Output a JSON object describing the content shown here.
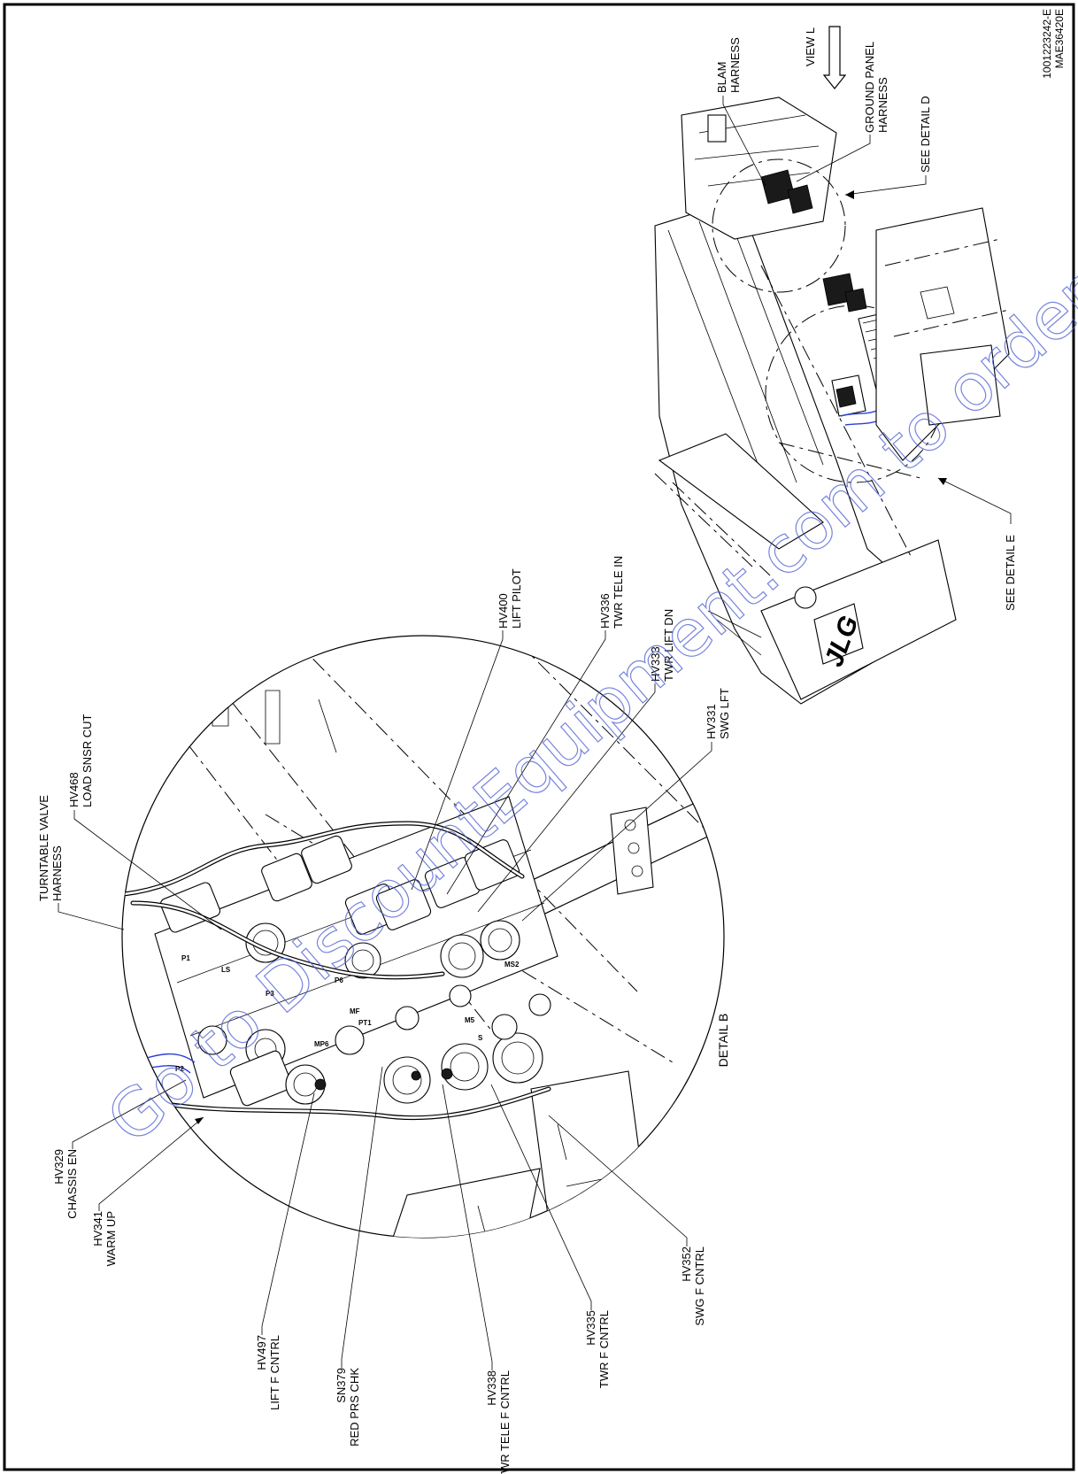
{
  "detail_b_title": "DETAIL B",
  "drawing_numbers": [
    "1001223242-E",
    "MAE36420E"
  ],
  "callouts": [
    {
      "id": "turntable-valve-harness",
      "lines": [
        "TURNTABLE VALVE",
        "HARNESS"
      ]
    },
    {
      "id": "hv468",
      "lines": [
        "HV468",
        "LOAD SNSR CUT"
      ]
    },
    {
      "id": "hv400",
      "lines": [
        "HV400",
        "LIFT PILOT"
      ]
    },
    {
      "id": "hv336",
      "lines": [
        "HV336",
        "TWR TELE IN"
      ]
    },
    {
      "id": "hv333",
      "lines": [
        "HV333",
        "TWR LIFT DN"
      ]
    },
    {
      "id": "hv331",
      "lines": [
        "HV331",
        "SWG LFT"
      ]
    },
    {
      "id": "hv329",
      "lines": [
        "HV329",
        "CHASSIS EN"
      ]
    },
    {
      "id": "hv341",
      "lines": [
        "HV341",
        "WARM UP"
      ]
    },
    {
      "id": "hv497",
      "lines": [
        "HV497",
        "LIFT F CNTRL"
      ]
    },
    {
      "id": "sn379",
      "lines": [
        "SN379",
        "RED PRS CHK"
      ]
    },
    {
      "id": "hv338",
      "lines": [
        "HV338",
        "TWR TELE F CNTRL"
      ]
    },
    {
      "id": "hv335",
      "lines": [
        "HV335",
        "TWR F CNTRL"
      ]
    },
    {
      "id": "hv352",
      "lines": [
        "HV352",
        "SWG F CNTRL"
      ]
    },
    {
      "id": "blam-harness",
      "lines": [
        "BLAM",
        "HARNESS"
      ]
    },
    {
      "id": "view-l",
      "lines": [
        "VIEW  L"
      ]
    },
    {
      "id": "ground-panel-harness",
      "lines": [
        "GROUND PANEL",
        "HARNESS"
      ]
    },
    {
      "id": "see-detail-d",
      "lines": [
        "SEE DETAIL D"
      ]
    },
    {
      "id": "see-detail-e",
      "lines": [
        "SEE DETAIL E"
      ]
    }
  ],
  "port_labels": [
    "P1",
    "P2",
    "P3",
    "P6",
    "LS",
    "MF",
    "PT1",
    "MP6",
    "MS2",
    "M5",
    "S"
  ],
  "logo_text": "JLG",
  "watermark_text": "Go to DiscountEquipment.com to order your parts"
}
